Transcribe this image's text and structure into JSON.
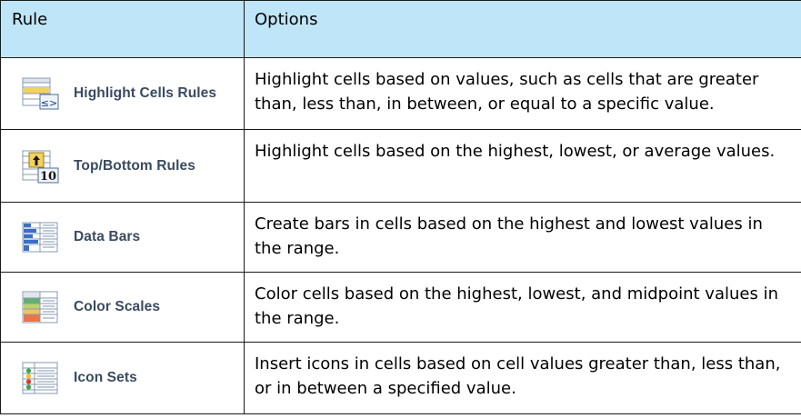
{
  "header": {
    "rule": "Rule",
    "options": "Options"
  },
  "rows": [
    {
      "label": "Highlight Cells Rules",
      "icon": "highlight-cells-rules-icon",
      "description": "Highlight cells based on values, such as cells that are greater than, less than, in between, or equal to a specific value."
    },
    {
      "label": "Top/Bottom Rules",
      "icon": "top-bottom-rules-icon",
      "description": "Highlight cells based on the highest, lowest, or average values."
    },
    {
      "label": "Data Bars",
      "icon": "data-bars-icon",
      "description": "Create bars in cells based on the highest and lowest values in the range."
    },
    {
      "label": "Color Scales",
      "icon": "color-scales-icon",
      "description": "Color cells based on the highest, lowest, and midpoint values in the range."
    },
    {
      "label": "Icon Sets",
      "icon": "icon-sets-icon",
      "description": "Insert icons in cells based on cell values greater than, less than, or in between a specified value."
    }
  ],
  "colors": {
    "header_bg": "#bfe5f8",
    "border": "#1a1a1a",
    "label_text": "#3a4a60"
  }
}
